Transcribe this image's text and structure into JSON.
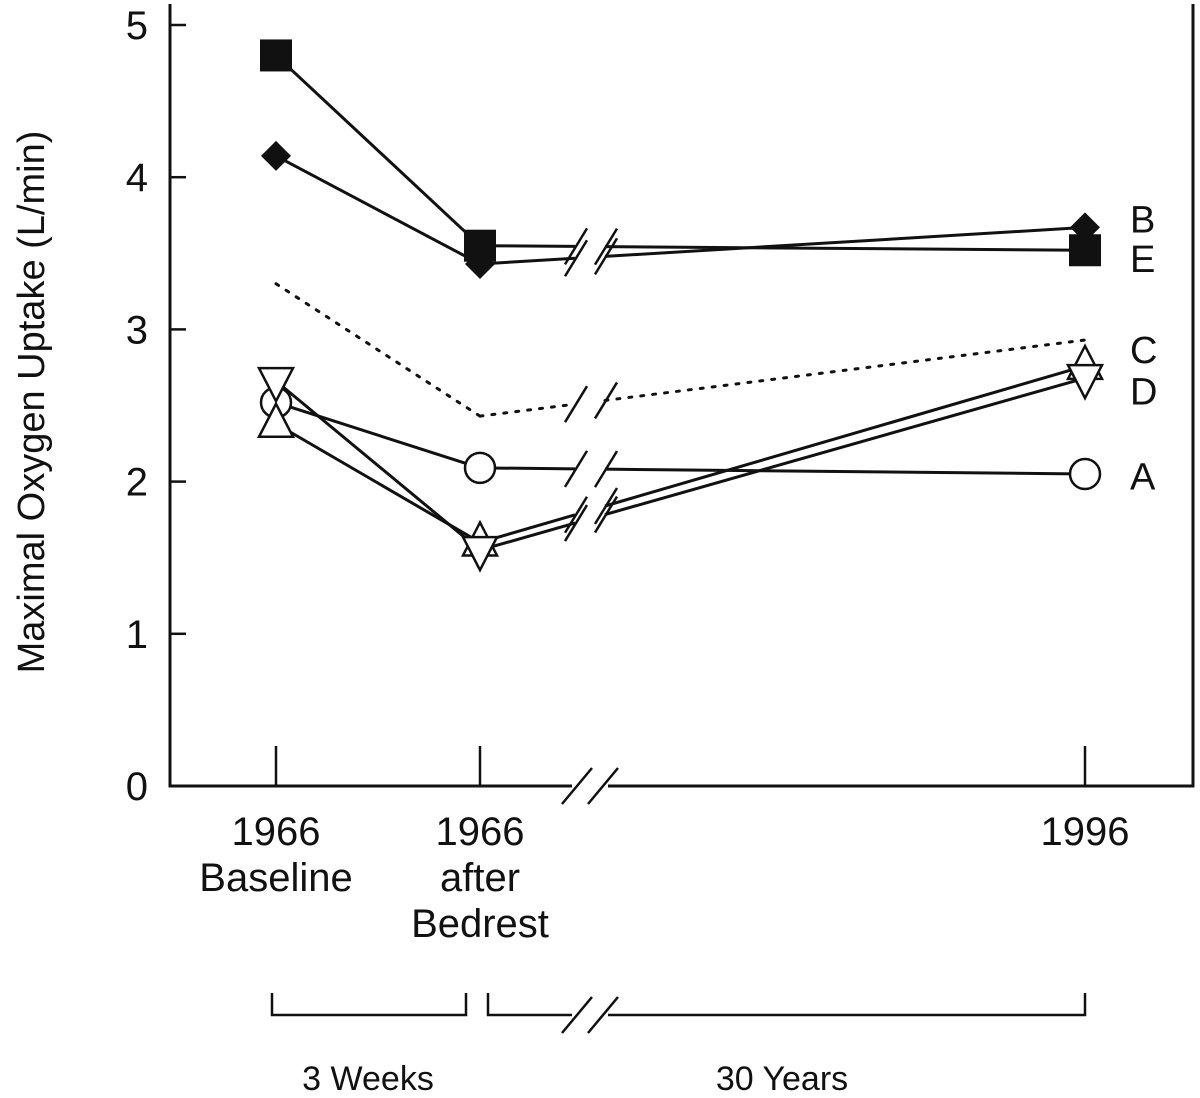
{
  "chart_data": {
    "type": "line",
    "title": "",
    "ylabel": "Maximal Oxygen Uptake (L/min)",
    "xlabel": "",
    "ylim": [
      0,
      5
    ],
    "yticks": [
      "0",
      "1",
      "2",
      "3",
      "4",
      "5"
    ],
    "categories": [
      {
        "line1": "1966",
        "line2": "Baseline",
        "line3": ""
      },
      {
        "line1": "1966",
        "line2": "after",
        "line3": "Bedrest"
      },
      {
        "line1": "1996",
        "line2": "",
        "line3": ""
      }
    ],
    "axis_break_between": [
      1,
      2
    ],
    "intervals": [
      {
        "label": "3 Weeks",
        "from": 0,
        "to": 1
      },
      {
        "label": "30 Years",
        "from": 1,
        "to": 2
      }
    ],
    "series": [
      {
        "name": "A",
        "marker": "circle-open",
        "style": "solid",
        "values": [
          2.52,
          2.09,
          2.05
        ]
      },
      {
        "name": "B",
        "marker": "diamond-filled",
        "style": "solid",
        "values": [
          4.14,
          3.43,
          3.67
        ]
      },
      {
        "name": "C",
        "marker": "triangle-up-open",
        "style": "solid",
        "values": [
          2.38,
          1.6,
          2.76
        ]
      },
      {
        "name": "D",
        "marker": "triangle-down-open",
        "style": "solid",
        "values": [
          2.66,
          1.55,
          2.68
        ]
      },
      {
        "name": "E",
        "marker": "square-filled",
        "style": "solid",
        "values": [
          4.8,
          3.55,
          3.52
        ]
      },
      {
        "name": "",
        "marker": "none",
        "style": "dotted",
        "values": [
          3.3,
          2.43,
          2.93
        ]
      }
    ],
    "series_label_values": {
      "A": 2.04,
      "B": 3.73,
      "C": 2.87,
      "D": 2.6,
      "E": 3.47
    },
    "grid": false,
    "legend": "right, inline labels"
  }
}
